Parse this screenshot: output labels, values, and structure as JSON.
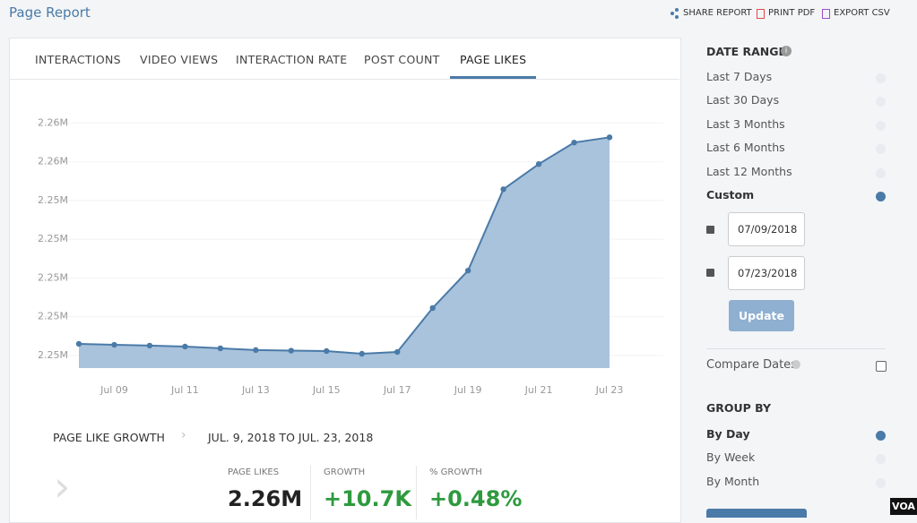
{
  "header": {
    "title": "Page Report",
    "actions": [
      "SHARE REPORT",
      "PRINT PDF",
      "EXPORT CSV"
    ]
  },
  "tabs": {
    "items": [
      "INTERACTIONS",
      "VIDEO VIEWS",
      "INTERACTION RATE",
      "POST COUNT",
      "PAGE LIKES"
    ],
    "active": 4
  },
  "chart": {
    "type": "area",
    "color": "#4a7aa8",
    "fill": "#a9c3dc",
    "categories": [
      null,
      "Jul 09",
      null,
      "Jul 11",
      null,
      "Jul 13",
      null,
      "Jul 15",
      null,
      "Jul 17",
      null,
      "Jul 19",
      null,
      "Jul 21",
      null,
      "Jul 23"
    ],
    "values": [
      2246600,
      2246550,
      2246510,
      2246460,
      2246370,
      2246280,
      2246250,
      2246230,
      2246090,
      2246180,
      2248450,
      2250380,
      2254580,
      2255880,
      2256990,
      2257260
    ],
    "ylim": [
      2245350,
      2258800
    ],
    "yticks": [
      {
        "value": 2246000,
        "label": "2.25M"
      },
      {
        "value": 2248000,
        "label": "2.25M"
      },
      {
        "value": 2250000,
        "label": "2.25M"
      },
      {
        "value": 2252000,
        "label": "2.25M"
      },
      {
        "value": 2254000,
        "label": "2.25M"
      },
      {
        "value": 2256000,
        "label": "2.26M"
      },
      {
        "value": 2258000,
        "label": "2.26M"
      }
    ],
    "grid": true
  },
  "summary": {
    "title": "PAGE LIKE GROWTH",
    "range": "JUL. 9, 2018 TO JUL. 23, 2018",
    "stats": [
      {
        "label": "PAGE LIKES",
        "value": "2.26M"
      },
      {
        "label": "GROWTH",
        "value": "+10.7K"
      },
      {
        "label": "% GROWTH",
        "value": "+0.48%"
      }
    ]
  },
  "sidebar": {
    "date_range": {
      "title": "DATE RANGE",
      "options": [
        "Last 7 Days",
        "Last 30 Days",
        "Last 3 Months",
        "Last 6 Months",
        "Last 12 Months",
        "Custom"
      ],
      "selected": 5,
      "start_date": "07/09/2018",
      "end_date": "07/23/2018",
      "button": "Update"
    },
    "compare": "Compare Dates",
    "group_by": {
      "title": "GROUP BY",
      "options": [
        "By Day",
        "By Week",
        "By Month"
      ],
      "selected": 0
    }
  },
  "watermark": "VOA"
}
